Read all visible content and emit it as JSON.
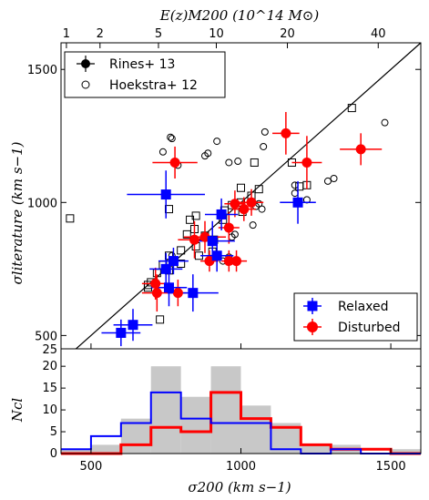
{
  "chart_data": [
    {
      "type": "scatter",
      "xlabel": "σ200 (km s−1)",
      "ylabel": "σliterature (km s−1)",
      "top_axis_label": "E(z)M200 (10^14 M⊙)",
      "top_ticks": [
        {
          "label": "1",
          "x": 418
        },
        {
          "label": "2",
          "x": 530
        },
        {
          "label": "5",
          "x": 725
        },
        {
          "label": "10",
          "x": 918
        },
        {
          "label": "20",
          "x": 1155
        },
        {
          "label": "40",
          "x": 1458
        }
      ],
      "xlim": [
        400,
        1600
      ],
      "ylim": [
        450,
        1600
      ],
      "xticks": [
        500,
        1000,
        1500
      ],
      "yticks": [
        500,
        1000,
        1500
      ],
      "extra_ytick_label": "25",
      "one_to_one_line": true,
      "legend_top": [
        "Rines+ 13",
        "Hoekstra+ 12"
      ],
      "legend_bottom": [
        "Relaxed",
        "Disturbed"
      ],
      "colors": {
        "relaxed": "#0000ff",
        "disturbed": "#ff0000",
        "hist_all": "#c8c8c8"
      },
      "rines_squares": [
        [
          1370,
          1355
        ],
        [
          1170,
          1150
        ],
        [
          1045,
          1150
        ],
        [
          1195,
          1060
        ],
        [
          1220,
          1065
        ],
        [
          1000,
          1055
        ],
        [
          1060,
          1050
        ],
        [
          1035,
          1025
        ],
        [
          1000,
          1000
        ],
        [
          970,
          990
        ],
        [
          1005,
          965
        ],
        [
          940,
          935
        ],
        [
          945,
          970
        ],
        [
          850,
          950
        ],
        [
          760,
          975
        ],
        [
          830,
          935
        ],
        [
          845,
          900
        ],
        [
          820,
          880
        ],
        [
          880,
          875
        ],
        [
          910,
          860
        ],
        [
          850,
          835
        ],
        [
          905,
          815
        ],
        [
          860,
          800
        ],
        [
          800,
          820
        ],
        [
          760,
          800
        ],
        [
          740,
          765
        ],
        [
          800,
          770
        ],
        [
          760,
          745
        ],
        [
          720,
          735
        ],
        [
          700,
          700
        ],
        [
          690,
          690
        ],
        [
          690,
          680
        ],
        [
          730,
          560
        ],
        [
          430,
          940
        ]
      ],
      "hoekstra_circles": [
        [
          1480,
          1300
        ],
        [
          1310,
          1090
        ],
        [
          1290,
          1080
        ],
        [
          1080,
          1265
        ],
        [
          1075,
          1210
        ],
        [
          990,
          1155
        ],
        [
          960,
          1150
        ],
        [
          920,
          1230
        ],
        [
          890,
          1185
        ],
        [
          880,
          1175
        ],
        [
          1180,
          1065
        ],
        [
          1180,
          1035
        ],
        [
          1220,
          1010
        ],
        [
          1060,
          995
        ],
        [
          1050,
          985
        ],
        [
          1070,
          975
        ],
        [
          1040,
          915
        ],
        [
          980,
          880
        ],
        [
          970,
          870
        ],
        [
          960,
          795
        ],
        [
          940,
          780
        ],
        [
          770,
          800
        ],
        [
          760,
          775
        ],
        [
          740,
          1190
        ],
        [
          765,
          1245
        ],
        [
          770,
          1240
        ],
        [
          790,
          1140
        ]
      ],
      "relaxed": [
        {
          "x": 750,
          "y": 1030,
          "xerr": 130,
          "yerr": 90
        },
        {
          "x": 1190,
          "y": 1000,
          "xerr": 60,
          "yerr": 80
        },
        {
          "x": 935,
          "y": 955,
          "xerr": 55,
          "yerr": 60
        },
        {
          "x": 905,
          "y": 855,
          "xerr": 75,
          "yerr": 75
        },
        {
          "x": 920,
          "y": 800,
          "xerr": 55,
          "yerr": 60
        },
        {
          "x": 775,
          "y": 780,
          "xerr": 50,
          "yerr": 50
        },
        {
          "x": 750,
          "y": 750,
          "xerr": 55,
          "yerr": 60
        },
        {
          "x": 760,
          "y": 680,
          "xerr": 60,
          "yerr": 70
        },
        {
          "x": 840,
          "y": 660,
          "xerr": 85,
          "yerr": 70
        },
        {
          "x": 640,
          "y": 540,
          "xerr": 65,
          "yerr": 60
        },
        {
          "x": 600,
          "y": 510,
          "xerr": 65,
          "yerr": 50
        }
      ],
      "disturbed": [
        {
          "x": 1150,
          "y": 1260,
          "xerr": 45,
          "yerr": 80
        },
        {
          "x": 1400,
          "y": 1200,
          "xerr": 70,
          "yerr": 60
        },
        {
          "x": 1220,
          "y": 1150,
          "xerr": 50,
          "yerr": 100
        },
        {
          "x": 780,
          "y": 1150,
          "xerr": 75,
          "yerr": 60
        },
        {
          "x": 1035,
          "y": 1000,
          "xerr": 40,
          "yerr": 50
        },
        {
          "x": 980,
          "y": 995,
          "xerr": 35,
          "yerr": 50
        },
        {
          "x": 1010,
          "y": 975,
          "xerr": 40,
          "yerr": 45
        },
        {
          "x": 960,
          "y": 905,
          "xerr": 35,
          "yerr": 60
        },
        {
          "x": 880,
          "y": 870,
          "xerr": 70,
          "yerr": 60
        },
        {
          "x": 845,
          "y": 860,
          "xerr": 55,
          "yerr": 70
        },
        {
          "x": 895,
          "y": 780,
          "xerr": 30,
          "yerr": 40
        },
        {
          "x": 960,
          "y": 780,
          "xerr": 25,
          "yerr": 40
        },
        {
          "x": 985,
          "y": 780,
          "xerr": 35,
          "yerr": 40
        },
        {
          "x": 715,
          "y": 695,
          "xerr": 45,
          "yerr": 60
        },
        {
          "x": 720,
          "y": 660,
          "xerr": 50,
          "yerr": 70
        },
        {
          "x": 790,
          "y": 660,
          "xerr": 30,
          "yerr": 50
        }
      ]
    },
    {
      "type": "histogram",
      "ylabel": "Ncl",
      "xlim": [
        400,
        1600
      ],
      "ylim": [
        0,
        24
      ],
      "yticks": [
        0,
        5,
        10,
        15,
        20
      ],
      "xticks": [
        500,
        1000,
        1500
      ],
      "bin_edges": [
        400,
        500,
        600,
        700,
        800,
        900,
        1000,
        1100,
        1200,
        1300,
        1400,
        1500,
        1600
      ],
      "all": [
        1,
        2,
        8,
        20,
        13,
        20,
        11,
        7,
        2,
        2,
        0,
        1
      ],
      "relaxed": [
        1,
        4,
        7,
        14,
        8,
        7,
        7,
        1,
        0,
        1,
        0,
        0
      ],
      "disturbed": [
        0,
        0,
        2,
        6,
        5,
        14,
        8,
        6,
        2,
        1,
        1,
        0
      ]
    }
  ]
}
